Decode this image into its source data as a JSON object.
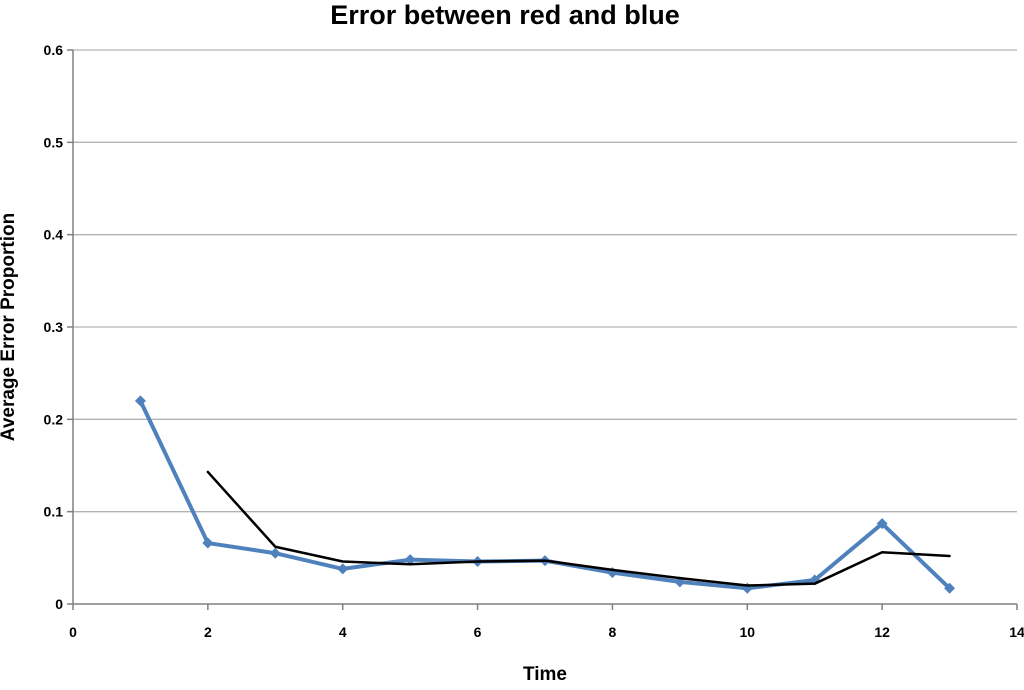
{
  "page": {
    "background": "#ffffff"
  },
  "chart_data": {
    "type": "line",
    "title": "Error between red and blue",
    "xlabel": "Time",
    "ylabel": "Average Error Proportion",
    "xlim": [
      0,
      14
    ],
    "ylim": [
      0,
      0.6
    ],
    "x_ticks": [
      0,
      2,
      4,
      6,
      8,
      10,
      12,
      14
    ],
    "x_tick_labels": [
      "0",
      "2",
      "4",
      "6",
      "8",
      "10",
      "12",
      "14"
    ],
    "y_ticks": [
      0,
      0.1,
      0.2,
      0.3,
      0.4,
      0.5,
      0.6
    ],
    "y_tick_labels": [
      "0",
      "0.1",
      "0.2",
      "0.3",
      "0.4",
      "0.5",
      "0.6"
    ],
    "grid": "horizontal",
    "legend": "none",
    "colors": {
      "gridline": "#b3b3b3",
      "axis": "#808080",
      "blue_series": "#4F81BD",
      "black_series": "#000000"
    },
    "series": [
      {
        "name": "blue",
        "color": "#4F81BD",
        "marker": "diamond",
        "line_width": 4,
        "x": [
          1,
          2,
          3,
          4,
          5,
          6,
          7,
          8,
          9,
          10,
          11,
          12,
          13
        ],
        "values": [
          0.22,
          0.066,
          0.055,
          0.038,
          0.048,
          0.046,
          0.047,
          0.034,
          0.024,
          0.017,
          0.026,
          0.087,
          0.017
        ]
      },
      {
        "name": "black",
        "color": "#000000",
        "marker": "none",
        "line_width": 2.5,
        "x": [
          2,
          3,
          4,
          5,
          6,
          7,
          8,
          9,
          10,
          11,
          12,
          13
        ],
        "values": [
          0.143,
          0.062,
          0.046,
          0.043,
          0.046,
          0.047,
          0.037,
          0.028,
          0.02,
          0.022,
          0.056,
          0.052
        ]
      }
    ]
  }
}
